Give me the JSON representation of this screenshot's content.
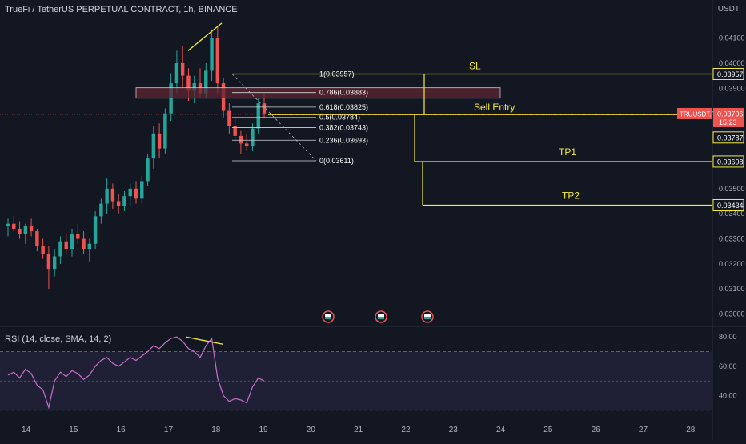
{
  "header": {
    "title": "TrueFi / TetherUS PERPETUAL CONTRACT, 1h, BINANCE",
    "currency": "USDT"
  },
  "rsi": {
    "title": "RSI (14, close, SMA, 14, 2)",
    "levels": [
      "80.00",
      "60.00",
      "40.00"
    ]
  },
  "price_axis": {
    "ticks": [
      "0.04100",
      "0.04000",
      "0.03900",
      "0.03700",
      "0.03500",
      "0.03400",
      "0.03300",
      "0.03200",
      "0.03100",
      "0.03000"
    ]
  },
  "labels": {
    "sl": "0.03957",
    "entry": "0.03787",
    "tp1": "0.03608",
    "tp2": "0.03434",
    "current_symbol": "TRUUSDT.P",
    "current_price": "0.03796",
    "countdown": "15:23"
  },
  "fib": [
    {
      "level": "1(0.03957)"
    },
    {
      "level": "0.786(0.03883)"
    },
    {
      "level": "0.618(0.03825)"
    },
    {
      "level": "0.5(0.03784)"
    },
    {
      "level": "0.382(0.03743)"
    },
    {
      "level": "0.236(0.03693)"
    },
    {
      "level": "0(0.03611)"
    }
  ],
  "annotations": {
    "sl": "SL",
    "sell_entry": "Sell Entry",
    "tp1": "TP1",
    "tp2": "TP2"
  },
  "time_axis": [
    "14",
    "15",
    "16",
    "17",
    "18",
    "19",
    "20",
    "21",
    "22",
    "23",
    "24",
    "25",
    "26",
    "27",
    "28"
  ],
  "colors": {
    "background": "#131722",
    "up": "#26a69a",
    "down": "#ef5350",
    "drawing": "#f5eb3b",
    "rsi": "#c770c8",
    "entry_box": "#5d2530"
  },
  "chart_data": {
    "type": "candlestick",
    "series": [
      {
        "name": "TRUUSDT.P",
        "values": [
          [
            0.0335,
            0.0338,
            0.0331,
            0.0336
          ],
          [
            0.0336,
            0.0339,
            0.0333,
            0.0334
          ],
          [
            0.0334,
            0.0337,
            0.033,
            0.0332
          ],
          [
            0.0332,
            0.0336,
            0.0328,
            0.0335
          ],
          [
            0.0335,
            0.0338,
            0.0331,
            0.0333
          ],
          [
            0.0333,
            0.0334,
            0.0325,
            0.0327
          ],
          [
            0.0327,
            0.033,
            0.0322,
            0.0324
          ],
          [
            0.0324,
            0.0327,
            0.031,
            0.0318
          ],
          [
            0.0318,
            0.0326,
            0.0315,
            0.0323
          ],
          [
            0.0323,
            0.0331,
            0.032,
            0.0329
          ],
          [
            0.0329,
            0.0332,
            0.0324,
            0.0326
          ],
          [
            0.0326,
            0.0334,
            0.0323,
            0.0332
          ],
          [
            0.0332,
            0.0336,
            0.0328,
            0.033
          ],
          [
            0.033,
            0.0333,
            0.0324,
            0.0326
          ],
          [
            0.0326,
            0.033,
            0.0321,
            0.0328
          ],
          [
            0.0328,
            0.0341,
            0.0326,
            0.0339
          ],
          [
            0.0339,
            0.0346,
            0.0336,
            0.0344
          ],
          [
            0.0344,
            0.0354,
            0.034,
            0.035
          ],
          [
            0.035,
            0.0352,
            0.0342,
            0.0345
          ],
          [
            0.0345,
            0.0348,
            0.034,
            0.0343
          ],
          [
            0.0343,
            0.0349,
            0.0341,
            0.0347
          ],
          [
            0.0347,
            0.0352,
            0.0343,
            0.035
          ],
          [
            0.035,
            0.0353,
            0.0344,
            0.0346
          ],
          [
            0.0346,
            0.0355,
            0.0344,
            0.0353
          ],
          [
            0.0353,
            0.0364,
            0.0351,
            0.0362
          ],
          [
            0.0362,
            0.0375,
            0.0358,
            0.0372
          ],
          [
            0.0372,
            0.0376,
            0.0362,
            0.0366
          ],
          [
            0.0366,
            0.0382,
            0.0364,
            0.038
          ],
          [
            0.038,
            0.0396,
            0.0377,
            0.0392
          ],
          [
            0.0392,
            0.0405,
            0.0388,
            0.04
          ],
          [
            0.04,
            0.0407,
            0.039,
            0.0395
          ],
          [
            0.0395,
            0.0398,
            0.0385,
            0.0389
          ],
          [
            0.0389,
            0.0395,
            0.0384,
            0.0392
          ],
          [
            0.0392,
            0.0398,
            0.0386,
            0.0388
          ],
          [
            0.0388,
            0.04,
            0.0386,
            0.0397
          ],
          [
            0.0397,
            0.0413,
            0.0393,
            0.041
          ],
          [
            0.041,
            0.0415,
            0.0388,
            0.0392
          ],
          [
            0.0392,
            0.0394,
            0.0378,
            0.0381
          ],
          [
            0.0381,
            0.0384,
            0.0372,
            0.0375
          ],
          [
            0.0375,
            0.0378,
            0.0368,
            0.0371
          ],
          [
            0.0371,
            0.0373,
            0.0364,
            0.0368
          ],
          [
            0.0368,
            0.0372,
            0.0365,
            0.0367
          ],
          [
            0.0367,
            0.0376,
            0.0365,
            0.0374
          ],
          [
            0.0374,
            0.0386,
            0.0372,
            0.0384
          ],
          [
            0.0384,
            0.0388,
            0.0378,
            0.038
          ]
        ]
      }
    ],
    "x": [
      "14",
      "15",
      "16",
      "17",
      "18",
      "19"
    ],
    "ylim": [
      0.0297,
      0.0422
    ],
    "rsi_values": [
      54,
      56,
      52,
      58,
      55,
      47,
      44,
      32,
      50,
      56,
      53,
      57,
      55,
      51,
      54,
      60,
      64,
      66,
      62,
      60,
      63,
      66,
      64,
      67,
      70,
      74,
      72,
      76,
      79,
      80,
      77,
      72,
      70,
      66,
      74,
      79,
      52,
      40,
      36,
      38,
      37,
      35,
      46,
      52,
      50
    ],
    "rsi_ylim": [
      25,
      85
    ]
  }
}
